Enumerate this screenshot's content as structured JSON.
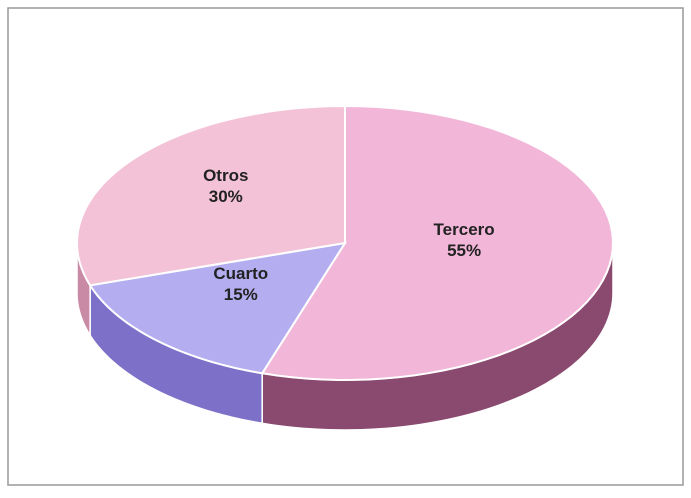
{
  "chart_data": {
    "type": "pie",
    "categories": [
      "Tercero",
      "Cuarto",
      "Otros"
    ],
    "values": [
      55,
      15,
      30
    ],
    "value_labels": [
      "55%",
      "15%",
      "30%"
    ],
    "colors": [
      "#f2b6d8",
      "#b4aef0",
      "#f4c2d6"
    ],
    "side_colors": [
      "#8a4a70",
      "#7d70c8",
      "#c98aa6"
    ],
    "start_angle": 0,
    "direction": "clockwise"
  }
}
